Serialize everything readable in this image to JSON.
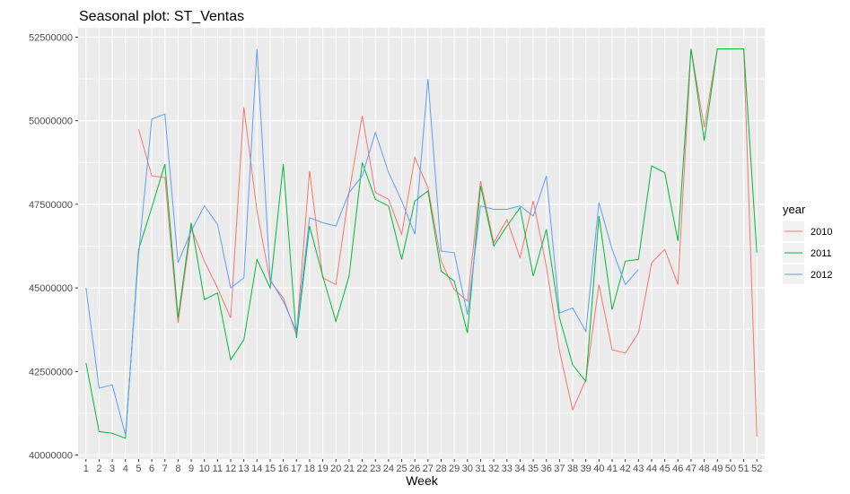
{
  "chart_data": {
    "type": "line",
    "title": "Seasonal plot: ST_Ventas",
    "xlabel": "Week",
    "ylabel": "",
    "legend_title": "year",
    "legend_position": "right",
    "grid": true,
    "xlim": [
      1,
      52
    ],
    "ylim": [
      40000000,
      52500000
    ],
    "y_ticks": [
      40000000,
      42500000,
      45000000,
      47500000,
      50000000,
      52500000
    ],
    "y_tick_labels": [
      "40000000",
      "42500000",
      "45000000",
      "47500000",
      "50000000",
      "52500000"
    ],
    "x_ticks": [
      1,
      2,
      3,
      4,
      5,
      6,
      7,
      8,
      9,
      10,
      11,
      12,
      13,
      14,
      15,
      16,
      17,
      18,
      19,
      20,
      21,
      22,
      23,
      24,
      25,
      26,
      27,
      28,
      29,
      30,
      31,
      32,
      33,
      34,
      35,
      36,
      37,
      38,
      39,
      40,
      41,
      42,
      43,
      44,
      45,
      46,
      47,
      48,
      49,
      50,
      51,
      52
    ],
    "series": [
      {
        "name": "2010",
        "color": "#F8766D",
        "x": [
          5,
          6,
          7,
          8,
          9,
          10,
          11,
          12,
          13,
          14,
          15,
          16,
          17,
          18,
          19,
          20,
          21,
          22,
          23,
          24,
          25,
          26,
          27,
          28,
          29,
          30,
          31,
          32,
          33,
          34,
          35,
          36,
          37,
          38,
          39,
          40,
          41,
          42,
          43,
          44,
          45,
          46,
          47,
          48,
          49,
          50,
          51,
          52
        ],
        "values": [
          49750000,
          48350000,
          48300000,
          43950000,
          46800000,
          45800000,
          45000000,
          44100000,
          50400000,
          47300000,
          45200000,
          44700000,
          43600000,
          48500000,
          45300000,
          45100000,
          47850000,
          50150000,
          47850000,
          47650000,
          46600000,
          48900000,
          48000000,
          45800000,
          44950000,
          44600000,
          48200000,
          46350000,
          47050000,
          45900000,
          47600000,
          45650000,
          43100000,
          41350000,
          42250000,
          45100000,
          43150000,
          43050000,
          43650000,
          45750000,
          46150000,
          45100000,
          52150000,
          49800000,
          52150000,
          52150000,
          52150000,
          40550000
        ]
      },
      {
        "name": "2011",
        "color": "#00BA38",
        "x": [
          1,
          2,
          3,
          4,
          5,
          6,
          7,
          8,
          9,
          10,
          11,
          12,
          13,
          14,
          15,
          16,
          17,
          18,
          19,
          20,
          21,
          22,
          23,
          24,
          25,
          26,
          27,
          28,
          29,
          30,
          31,
          32,
          33,
          34,
          35,
          36,
          37,
          38,
          39,
          40,
          41,
          42,
          43,
          44,
          45,
          46,
          47,
          48,
          49,
          50,
          51,
          52
        ],
        "values": [
          42750000,
          40700000,
          40650000,
          40500000,
          46150000,
          47400000,
          48700000,
          44100000,
          46950000,
          44650000,
          44850000,
          42850000,
          43450000,
          45850000,
          45000000,
          48700000,
          43500000,
          46850000,
          45350000,
          44000000,
          45350000,
          48750000,
          47650000,
          47450000,
          45850000,
          47600000,
          47900000,
          45500000,
          45200000,
          43650000,
          48050000,
          46250000,
          46850000,
          47400000,
          45350000,
          46750000,
          44100000,
          42700000,
          42200000,
          47150000,
          44350000,
          45800000,
          45850000,
          48650000,
          48450000,
          46400000,
          52150000,
          49400000,
          52150000,
          52150000,
          52150000,
          46050000
        ]
      },
      {
        "name": "2012",
        "color": "#619CFF",
        "x": [
          1,
          2,
          3,
          4,
          5,
          6,
          7,
          8,
          9,
          10,
          11,
          12,
          13,
          14,
          15,
          16,
          17,
          18,
          19,
          20,
          21,
          22,
          23,
          24,
          25,
          26,
          27,
          28,
          29,
          30,
          31,
          32,
          33,
          34,
          35,
          36,
          37,
          38,
          39,
          40,
          41,
          42,
          43
        ],
        "values": [
          45000000,
          42000000,
          42100000,
          40600000,
          46000000,
          50050000,
          50200000,
          45750000,
          46700000,
          47450000,
          46900000,
          45000000,
          45300000,
          52150000,
          45250000,
          44600000,
          43700000,
          47100000,
          46950000,
          46850000,
          47850000,
          48350000,
          49650000,
          48450000,
          47600000,
          46600000,
          51250000,
          46100000,
          46050000,
          44200000,
          47450000,
          47350000,
          47350000,
          47450000,
          47150000,
          48350000,
          44250000,
          44400000,
          43700000,
          47550000,
          46150000,
          45100000,
          45550000
        ]
      }
    ]
  }
}
